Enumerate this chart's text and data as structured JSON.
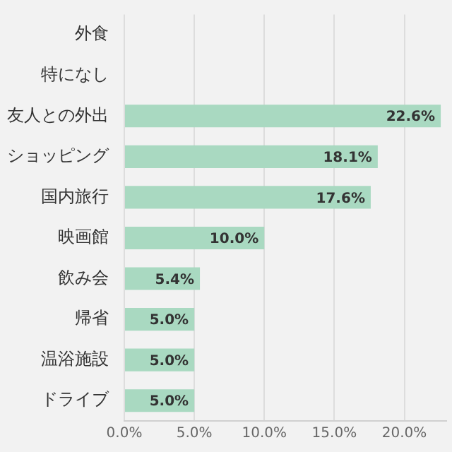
{
  "chart_data": {
    "type": "bar",
    "orientation": "horizontal",
    "categories": [
      "外食",
      "特になし",
      "友人との外出",
      "ショッピング",
      "国内旅行",
      "映画館",
      "飲み会",
      "帰省",
      "温浴施設",
      "ドライブ"
    ],
    "values": [
      null,
      null,
      22.6,
      18.1,
      17.6,
      10.0,
      5.4,
      5.0,
      5.0,
      5.0
    ],
    "value_labels": [
      null,
      null,
      "22.6%",
      "18.1%",
      "17.6%",
      "10.0%",
      "5.4%",
      "5.0%",
      "5.0%",
      "5.0%"
    ],
    "color": "#a9d9c1",
    "xlim": [
      0,
      23
    ],
    "xticks": [
      {
        "value": 0,
        "label": "0.0%"
      },
      {
        "value": 5,
        "label": "5.0%"
      },
      {
        "value": 10,
        "label": "10.0%"
      },
      {
        "value": 15,
        "label": "15.0%"
      },
      {
        "value": 20,
        "label": "20.0%"
      }
    ],
    "grid": "x",
    "legend": false
  }
}
